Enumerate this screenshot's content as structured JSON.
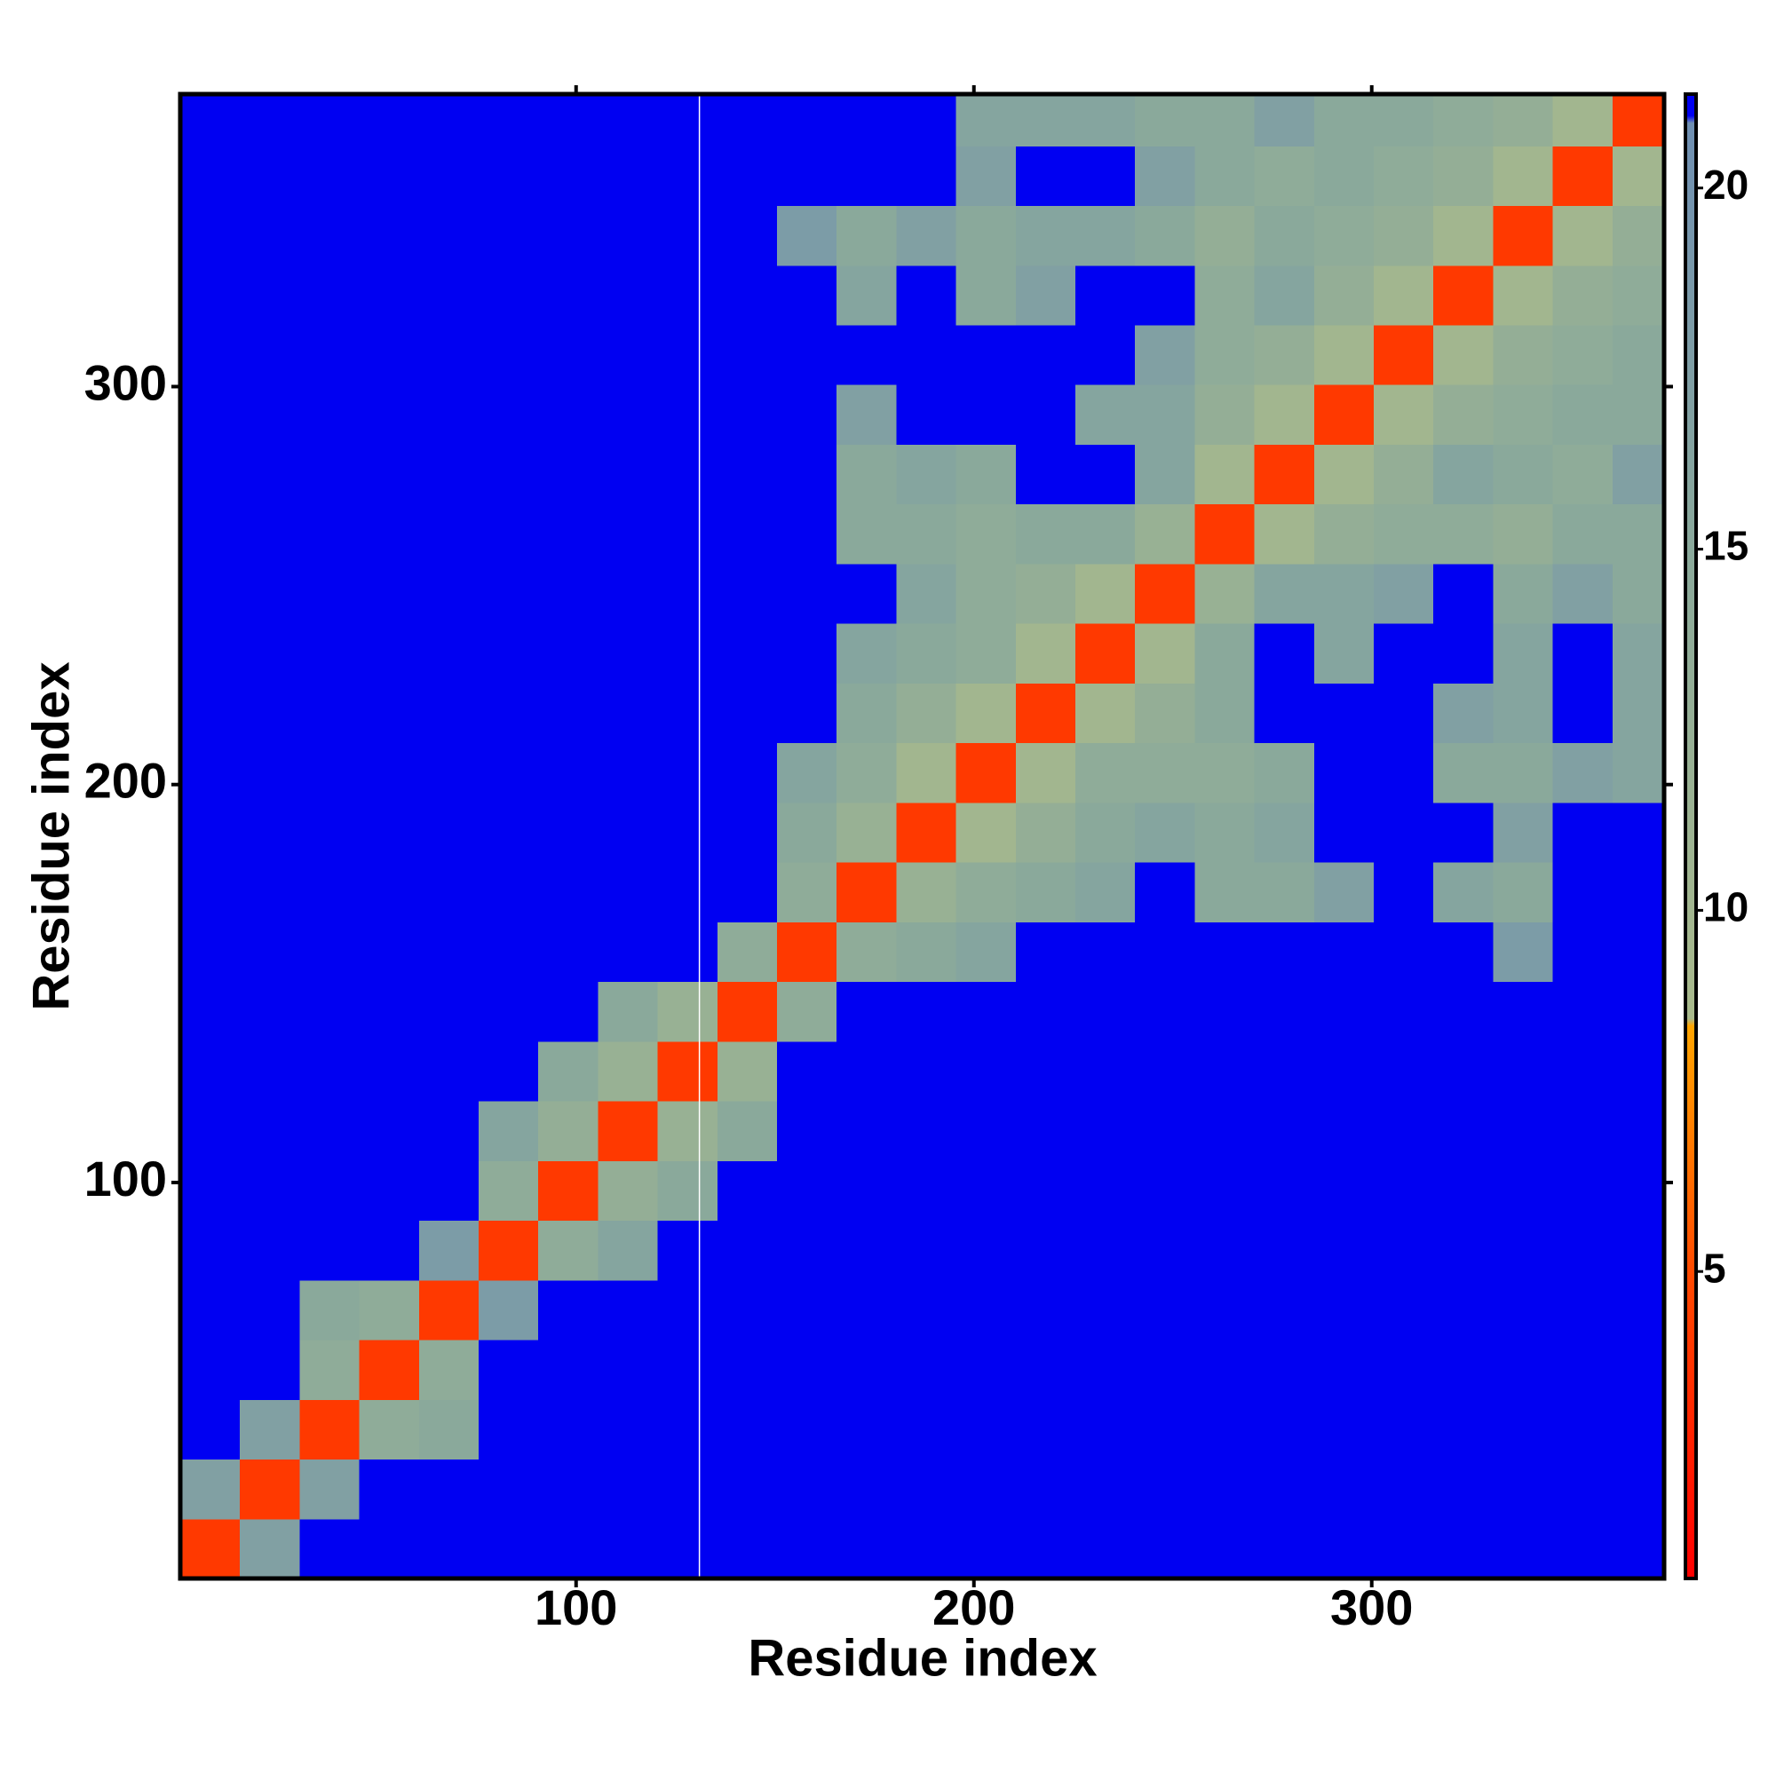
{
  "chart_data": {
    "type": "heatmap",
    "x_label": "Residue index",
    "y_label": "Residue index",
    "xlim": [
      0.5,
      373.5
    ],
    "ylim": [
      0.5,
      373.5
    ],
    "xticks": [
      100,
      200,
      300
    ],
    "yticks": [
      100,
      200,
      300
    ],
    "x_bins": [
      0.5,
      15.5,
      30.5,
      45.5,
      60.5,
      75.5,
      90.5,
      105.5,
      120.5,
      135.5,
      150.5,
      165.5,
      180.5,
      195.5,
      210.5,
      225.5,
      240.5,
      255.5,
      270.5,
      285.5,
      300.5,
      315.5,
      330.5,
      345.5,
      360.5,
      373.5
    ],
    "y_bins": [
      0.5,
      15.5,
      30.5,
      45.5,
      60.5,
      75.5,
      90.5,
      105.5,
      120.5,
      135.5,
      150.5,
      165.5,
      180.5,
      195.5,
      210.5,
      225.5,
      240.5,
      255.5,
      270.5,
      285.5,
      300.5,
      315.5,
      330.5,
      345.5,
      360.5,
      373.5
    ],
    "z": [
      [
        4,
        17,
        21,
        21,
        21,
        21,
        21,
        21,
        21,
        21,
        21,
        21,
        21,
        21,
        21,
        21,
        21,
        21,
        21,
        21,
        21,
        21,
        21,
        21,
        21
      ],
      [
        17,
        4,
        17,
        21,
        21,
        21,
        21,
        21,
        21,
        21,
        21,
        21,
        21,
        21,
        21,
        21,
        21,
        21,
        21,
        21,
        21,
        21,
        21,
        21,
        21
      ],
      [
        21,
        17,
        4,
        14,
        15,
        21,
        21,
        21,
        21,
        21,
        21,
        21,
        21,
        21,
        21,
        21,
        21,
        21,
        21,
        21,
        21,
        21,
        21,
        21,
        21
      ],
      [
        21,
        21,
        14,
        4,
        14,
        21,
        21,
        21,
        21,
        21,
        21,
        21,
        21,
        21,
        21,
        21,
        21,
        21,
        21,
        21,
        21,
        21,
        21,
        21,
        21
      ],
      [
        21,
        21,
        15,
        14,
        4,
        18,
        21,
        21,
        21,
        21,
        21,
        21,
        21,
        21,
        21,
        21,
        21,
        21,
        21,
        21,
        21,
        21,
        21,
        21,
        21
      ],
      [
        21,
        21,
        21,
        21,
        18,
        4,
        14,
        16,
        21,
        21,
        21,
        21,
        21,
        21,
        21,
        21,
        21,
        21,
        21,
        21,
        21,
        21,
        21,
        21,
        21
      ],
      [
        21,
        21,
        21,
        21,
        21,
        14,
        4,
        13,
        15,
        21,
        21,
        21,
        21,
        21,
        21,
        21,
        21,
        21,
        21,
        21,
        21,
        21,
        21,
        21,
        21
      ],
      [
        21,
        21,
        21,
        21,
        21,
        16,
        13,
        4,
        12,
        15,
        21,
        21,
        21,
        21,
        21,
        21,
        21,
        21,
        21,
        21,
        21,
        21,
        21,
        21,
        21
      ],
      [
        21,
        21,
        21,
        21,
        21,
        21,
        15,
        12,
        4,
        12,
        21,
        21,
        21,
        21,
        21,
        21,
        21,
        21,
        21,
        21,
        21,
        21,
        21,
        21,
        21
      ],
      [
        21,
        21,
        21,
        21,
        21,
        21,
        21,
        15,
        12,
        4,
        14,
        21,
        21,
        21,
        21,
        21,
        21,
        21,
        21,
        21,
        21,
        21,
        21,
        21,
        21
      ],
      [
        21,
        21,
        21,
        21,
        21,
        21,
        21,
        21,
        21,
        14,
        4,
        14,
        15,
        16,
        21,
        21,
        21,
        21,
        21,
        21,
        21,
        21,
        18,
        21,
        21
      ],
      [
        21,
        21,
        21,
        21,
        21,
        21,
        21,
        21,
        21,
        21,
        14,
        4,
        12,
        14,
        15,
        16,
        21,
        15,
        15,
        17,
        21,
        16,
        15,
        21,
        21
      ],
      [
        21,
        21,
        21,
        21,
        21,
        21,
        21,
        21,
        21,
        21,
        15,
        12,
        4,
        10,
        13,
        15,
        16,
        15,
        16,
        21,
        21,
        21,
        17,
        21,
        21
      ],
      [
        21,
        21,
        21,
        21,
        21,
        21,
        21,
        21,
        21,
        21,
        16,
        14,
        10,
        4,
        10,
        14,
        14,
        14,
        15,
        21,
        21,
        15,
        15,
        17,
        16
      ],
      [
        21,
        21,
        21,
        21,
        21,
        21,
        21,
        21,
        21,
        21,
        21,
        15,
        13,
        10,
        4,
        10,
        13,
        15,
        21,
        21,
        21,
        17,
        16,
        21,
        16
      ],
      [
        21,
        21,
        21,
        21,
        21,
        21,
        21,
        21,
        21,
        21,
        21,
        16,
        15,
        14,
        10,
        4,
        10,
        15,
        21,
        16,
        21,
        21,
        16,
        21,
        16
      ],
      [
        21,
        21,
        21,
        21,
        21,
        21,
        21,
        21,
        21,
        21,
        21,
        21,
        16,
        14,
        13,
        10,
        4,
        12,
        16,
        16,
        17,
        21,
        15,
        17,
        15
      ],
      [
        21,
        21,
        21,
        21,
        21,
        21,
        21,
        21,
        21,
        21,
        21,
        15,
        15,
        14,
        15,
        15,
        12,
        4,
        10,
        13,
        14,
        14,
        13,
        15,
        15
      ],
      [
        21,
        21,
        21,
        21,
        21,
        21,
        21,
        21,
        21,
        21,
        21,
        15,
        16,
        15,
        21,
        21,
        16,
        10,
        4,
        10,
        13,
        16,
        15,
        14,
        17
      ],
      [
        21,
        21,
        21,
        21,
        21,
        21,
        21,
        21,
        21,
        21,
        21,
        17,
        21,
        21,
        21,
        16,
        16,
        13,
        10,
        4,
        10,
        13,
        14,
        15,
        15
      ],
      [
        21,
        21,
        21,
        21,
        21,
        21,
        21,
        21,
        21,
        21,
        21,
        21,
        21,
        21,
        21,
        21,
        17,
        14,
        13,
        10,
        4,
        10,
        13,
        14,
        15
      ],
      [
        21,
        21,
        21,
        21,
        21,
        21,
        21,
        21,
        21,
        21,
        21,
        16,
        21,
        15,
        17,
        21,
        21,
        14,
        16,
        13,
        10,
        4,
        10,
        13,
        14
      ],
      [
        21,
        21,
        21,
        21,
        21,
        21,
        21,
        21,
        21,
        21,
        18,
        15,
        17,
        15,
        16,
        16,
        15,
        13,
        15,
        14,
        13,
        10,
        4,
        10,
        13
      ],
      [
        21,
        21,
        21,
        21,
        21,
        21,
        21,
        21,
        21,
        21,
        21,
        21,
        21,
        17,
        21,
        21,
        17,
        15,
        14,
        15,
        14,
        13,
        10,
        4,
        10
      ],
      [
        21,
        21,
        21,
        21,
        21,
        21,
        21,
        21,
        21,
        21,
        21,
        21,
        21,
        16,
        16,
        16,
        15,
        15,
        17,
        15,
        15,
        14,
        13,
        10,
        4
      ]
    ],
    "vlines": [
      131
    ],
    "zlim": [
      0.75,
      21.3
    ],
    "zticks": [
      5,
      10,
      15,
      20
    ],
    "colorscale": [
      [
        0.75,
        "#ff0000"
      ],
      [
        5,
        "#ff4a00"
      ],
      [
        8.4,
        "#ffa500"
      ],
      [
        8.5,
        "#a9ba8c"
      ],
      [
        15,
        "#8aa99b"
      ],
      [
        20.9,
        "#6f8fb2"
      ],
      [
        21,
        "#0000f2"
      ],
      [
        21.3,
        "#0000f2"
      ]
    ]
  }
}
